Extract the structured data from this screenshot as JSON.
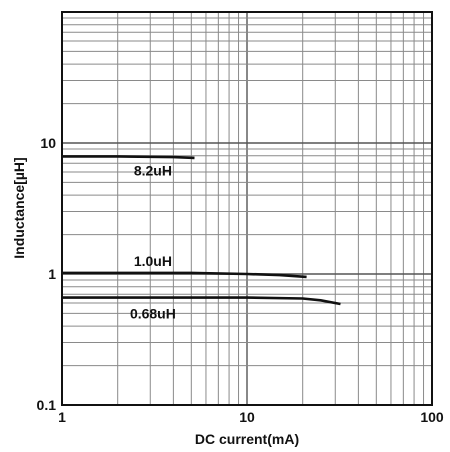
{
  "chart_data": {
    "type": "line",
    "title": "",
    "xlabel": "DC current(mA)",
    "ylabel": "Inductance[µH]",
    "x_scale": "log",
    "y_scale": "log",
    "xlim": [
      1,
      100
    ],
    "ylim": [
      0.1,
      100
    ],
    "x_ticks": [
      {
        "value": 1,
        "label": "1"
      },
      {
        "value": 10,
        "label": "10"
      },
      {
        "value": 100,
        "label": "100"
      }
    ],
    "y_ticks": [
      {
        "value": 0.1,
        "label": "0.1"
      },
      {
        "value": 1,
        "label": "1"
      },
      {
        "value": 10,
        "label": "10"
      }
    ],
    "grid": true,
    "line_color": "#111111",
    "series": [
      {
        "annotation": "8.2uH",
        "x": [
          1,
          2,
          3,
          4,
          5.2
        ],
        "y": [
          7.9,
          7.9,
          7.85,
          7.8,
          7.7
        ]
      },
      {
        "annotation": "1.0uH",
        "x": [
          1,
          5,
          10,
          15,
          21
        ],
        "y": [
          1.02,
          1.02,
          1.0,
          0.98,
          0.95
        ]
      },
      {
        "annotation": "0.68uH",
        "x": [
          1,
          10,
          20,
          25,
          32
        ],
        "y": [
          0.66,
          0.66,
          0.65,
          0.63,
          0.59
        ]
      }
    ]
  }
}
